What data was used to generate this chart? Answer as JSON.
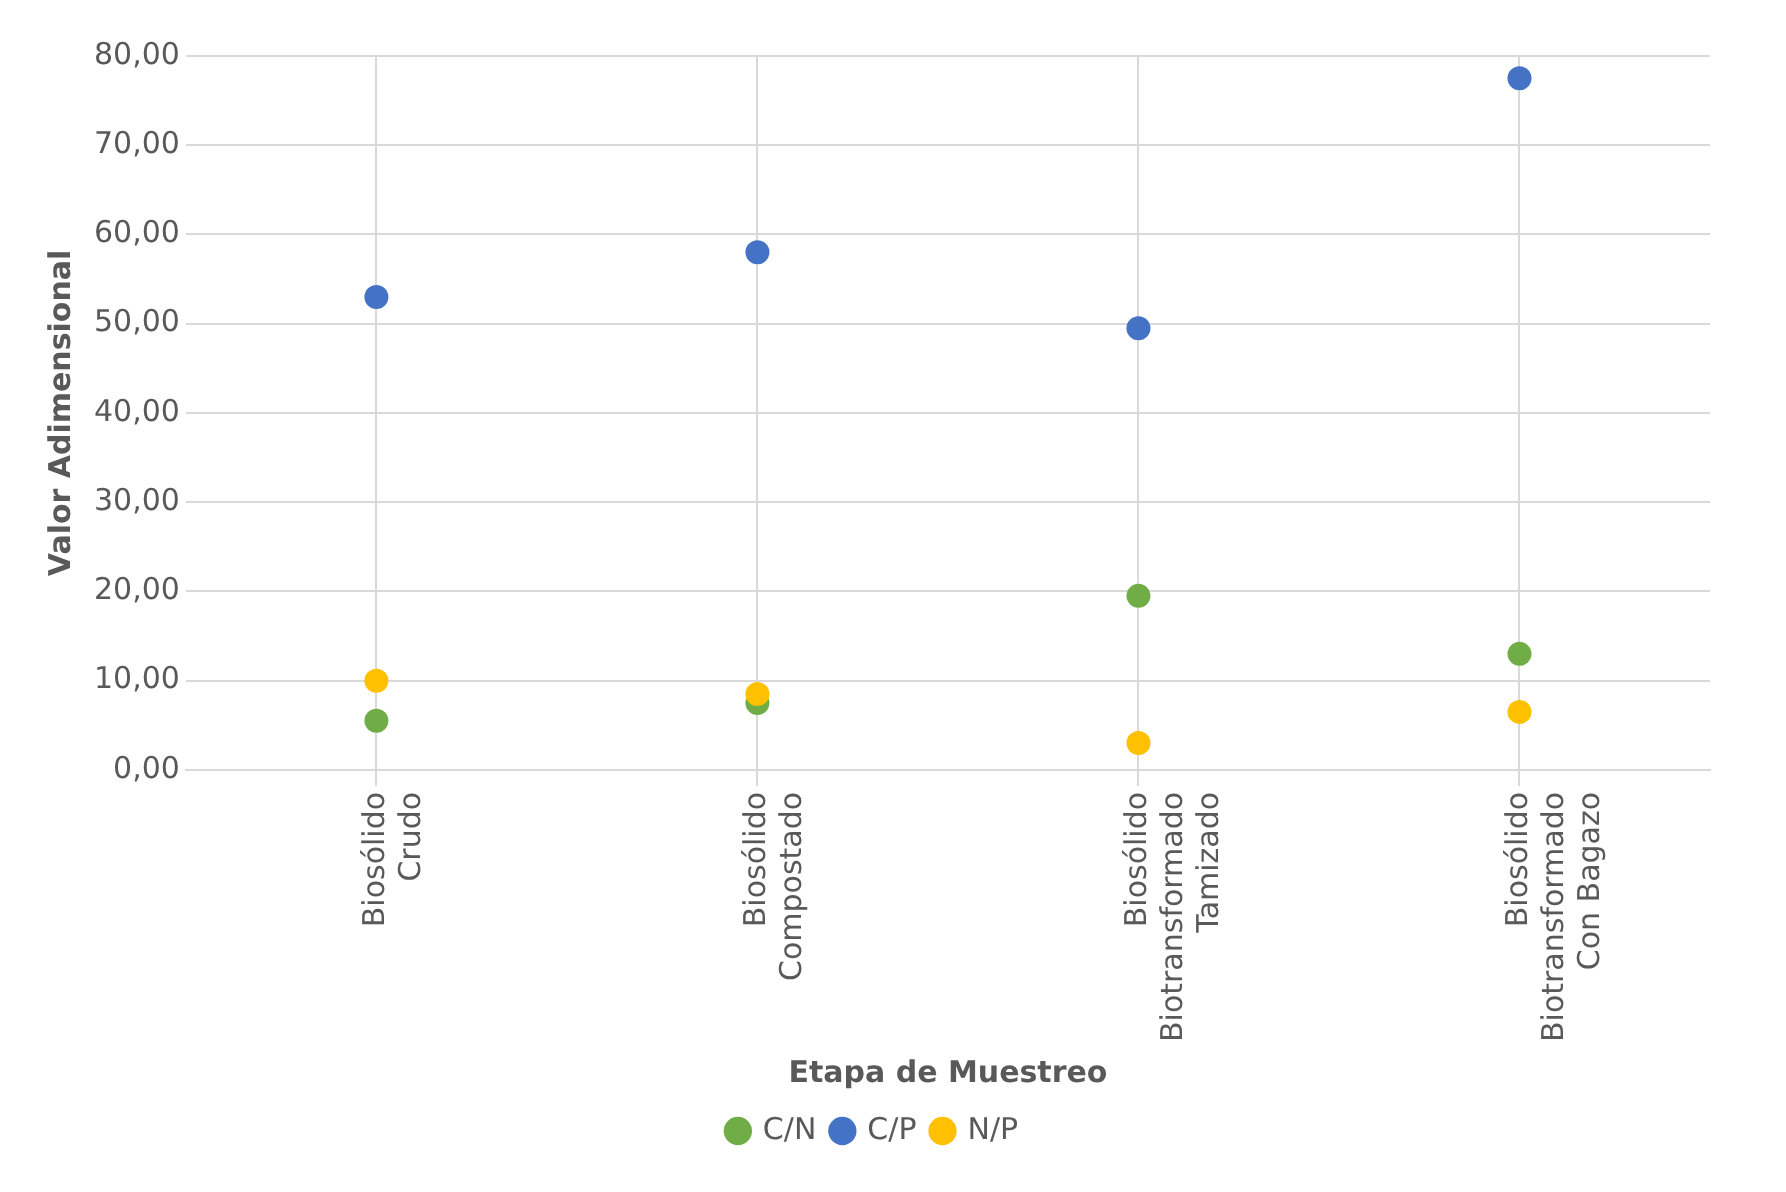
{
  "chart_data": {
    "type": "scatter",
    "xlabel": "Etapa de Muestreo",
    "ylabel": "Valor Adimensional",
    "categories": [
      "Biosólido\nCrudo",
      "Biosólido\nCompostado",
      "Biosólido\nBiotransformado\nTamizado",
      "Biosólido\nBiotransformado\nCon Bagazo"
    ],
    "series": [
      {
        "name": "C/N",
        "color": "#70ad47",
        "values": [
          5.5,
          7.5,
          19.5,
          13
        ]
      },
      {
        "name": "C/P",
        "color": "#4472c4",
        "values": [
          53,
          58,
          49.5,
          77.5
        ]
      },
      {
        "name": "N/P",
        "color": "#ffc000",
        "values": [
          10,
          8.5,
          3,
          6.5
        ]
      }
    ],
    "ylim": [
      0,
      80
    ],
    "yticks": [
      {
        "value": 0,
        "label": "0,00"
      },
      {
        "value": 10,
        "label": "10,00"
      },
      {
        "value": 20,
        "label": "20,00"
      },
      {
        "value": 30,
        "label": "30,00"
      },
      {
        "value": 40,
        "label": "40,00"
      },
      {
        "value": 50,
        "label": "50,00"
      },
      {
        "value": 60,
        "label": "60,00"
      },
      {
        "value": 70,
        "label": "70,00"
      },
      {
        "value": 80,
        "label": "80,00"
      }
    ],
    "grid": true,
    "legend": "bottom",
    "marker": "circle"
  }
}
